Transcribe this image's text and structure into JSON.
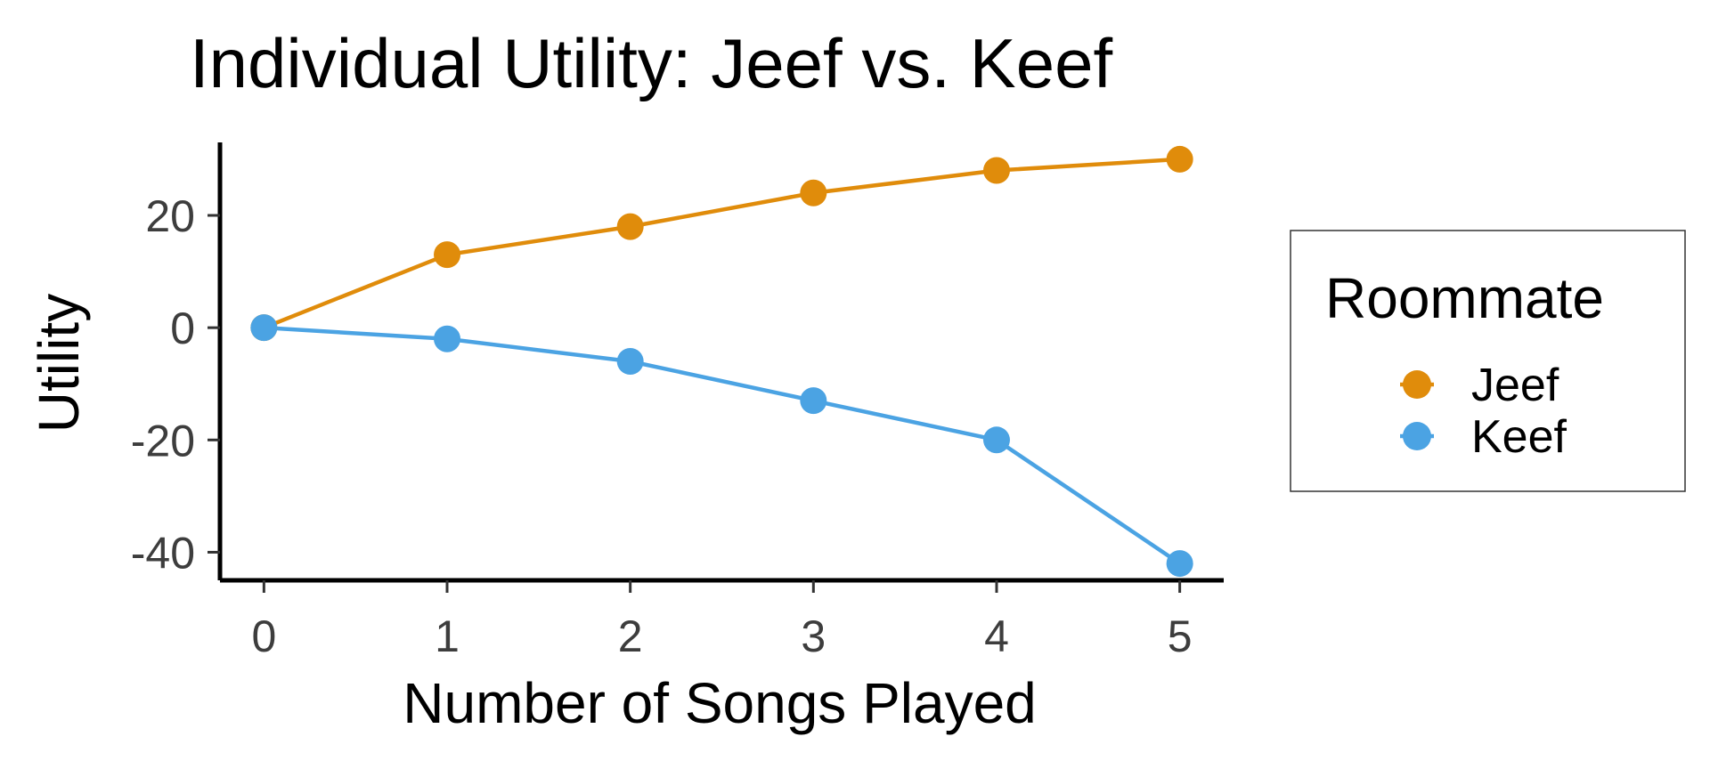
{
  "chart_data": {
    "type": "line",
    "title": "Individual Utility: Jeef vs. Keef",
    "xlabel": "Number of Songs Played",
    "ylabel": "Utility",
    "x": [
      0,
      1,
      2,
      3,
      4,
      5
    ],
    "x_ticks": [
      "0",
      "1",
      "2",
      "3",
      "4",
      "5"
    ],
    "y_ticks": [
      20,
      0,
      -20,
      -40
    ],
    "y_tick_labels": [
      "20",
      "0",
      "-20",
      "-40"
    ],
    "xlim": [
      -0.24,
      5.24
    ],
    "ylim": [
      -45,
      33
    ],
    "grid": false,
    "legend": {
      "title": "Roommate",
      "placement": "right"
    },
    "series": [
      {
        "name": "Jeef",
        "color": "#E08C0B",
        "values": [
          0,
          13,
          18,
          24,
          28,
          30
        ]
      },
      {
        "name": "Keef",
        "color": "#4BA3E3",
        "values": [
          0,
          -2,
          -6,
          -13,
          -20,
          -42
        ]
      }
    ]
  }
}
